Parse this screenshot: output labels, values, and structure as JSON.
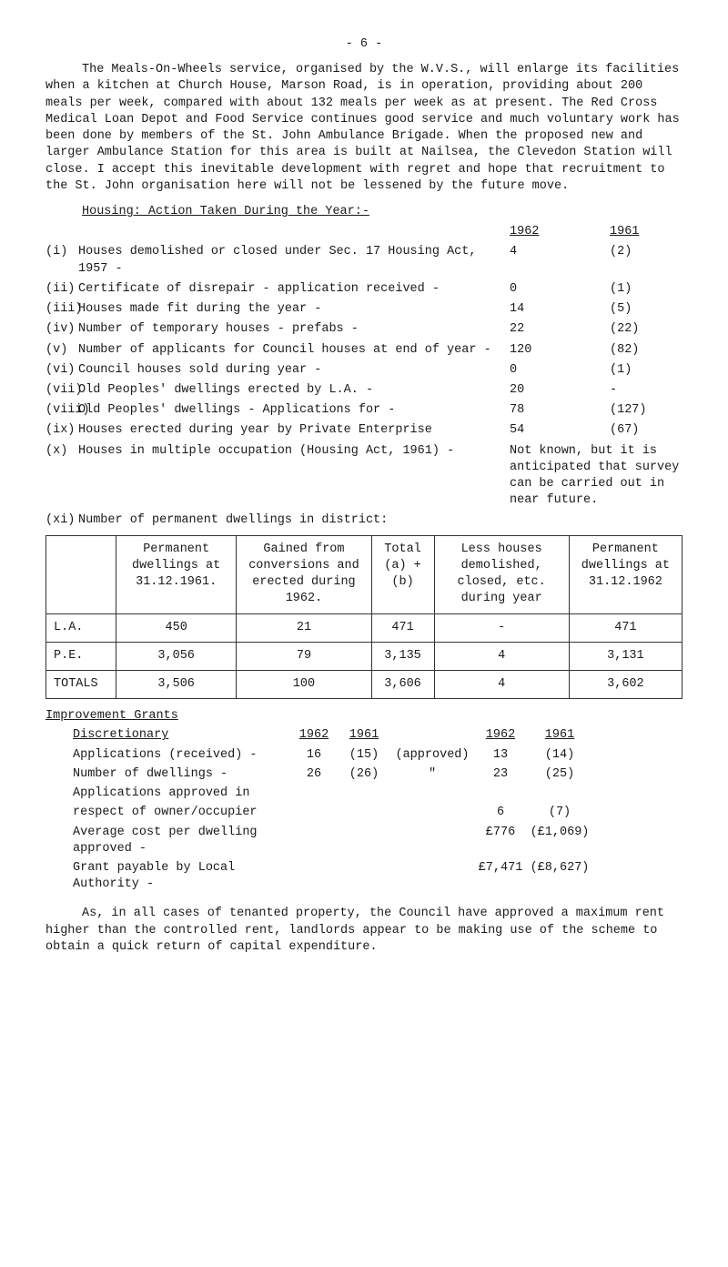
{
  "page_number": "- 6 -",
  "para1": "The Meals-On-Wheels service, organised by the W.V.S., will enlarge its facilities when a kitchen at Church House, Marson Road, is in operation, providing about 200 meals per week, compared with about 132 meals per week as at present.  The Red Cross Medical Loan Depot and Food Service continues good service and much voluntary work has been done by members of the St. John Ambulance Brigade.  When the proposed new and larger Ambulance Station for this area is built at Nailsea, the Clevedon Station will close.  I accept this inevitable development with regret and hope that recruitment to the St. John organisation here will not be lessened by the future move.",
  "housing_heading": "Housing: Action Taken During the Year:-",
  "year_a": "1962",
  "year_b": "1961",
  "housing_rows": [
    {
      "n": "(i)",
      "t": "Houses demolished or closed under Sec. 17 Housing Act, 1957 -",
      "a": "4",
      "b": "(2)"
    },
    {
      "n": "(ii)",
      "t": "Certificate of disrepair - application received -",
      "a": "0",
      "b": "(1)"
    },
    {
      "n": "(iii)",
      "t": "Houses made fit during the year      -",
      "a": "14",
      "b": "(5)"
    },
    {
      "n": "(iv)",
      "t": "Number of temporary houses - prefabs -",
      "a": "22",
      "b": "(22)"
    },
    {
      "n": "(v)",
      "t": "Number of applicants for Council houses at end of year -",
      "a": "120",
      "b": "(82)"
    },
    {
      "n": "(vi)",
      "t": "Council houses sold during year      -",
      "a": "0",
      "b": "(1)"
    },
    {
      "n": "(vii)",
      "t": "Old Peoples' dwellings erected by L.A. -",
      "a": "20",
      "b": "-"
    },
    {
      "n": "(viii)",
      "t": "Old Peoples' dwellings - Applications for -",
      "a": "78",
      "b": "(127)"
    },
    {
      "n": "(ix)",
      "t": "Houses erected during year by Private Enterprise",
      "a": "54",
      "b": "(67)"
    }
  ],
  "housing_x": {
    "n": "(x)",
    "t": "Houses in multiple occupation (Housing Act, 1961)     -",
    "note": "Not known, but it is anticipated that survey can be carried out in near future."
  },
  "housing_xi": {
    "n": "(xi)",
    "t": "Number of permanent dwellings in district:"
  },
  "table": {
    "headers": [
      "",
      "Permanent dwellings at 31.12.1961.",
      "Gained from conversions and erected during 1962.",
      "Total (a) + (b)",
      "Less houses demolished, closed, etc. during year",
      "Permanent dwellings at 31.12.1962"
    ],
    "rows": [
      [
        "L.A.",
        "450",
        "21",
        "471",
        "-",
        "471"
      ],
      [
        "P.E.",
        "3,056",
        "79",
        "3,135",
        "4",
        "3,131"
      ],
      [
        "TOTALS",
        "3,506",
        "100",
        "3,606",
        "4",
        "3,602"
      ]
    ]
  },
  "grants_heading": "Improvement Grants",
  "disc_heading": "Discretionary",
  "disc_years": {
    "c1": "1962",
    "c2": "1961",
    "c4": "1962",
    "c5": "1961"
  },
  "disc_rows": [
    {
      "l": "Applications (received) -",
      "c1": "16",
      "c2": "(15)",
      "c3": "(approved)",
      "c4": "13",
      "c5": "(14)"
    },
    {
      "l": "Number of dwellings     -",
      "c1": "26",
      "c2": "(26)",
      "c3": "\"",
      "c4": "23",
      "c5": "(25)"
    },
    {
      "l": "Applications approved in",
      "c1": "",
      "c2": "",
      "c3": "",
      "c4": "",
      "c5": ""
    },
    {
      "l": "respect of owner/occupier",
      "c1": "",
      "c2": "",
      "c3": "",
      "c4": "6",
      "c5": "(7)"
    },
    {
      "l": "Average cost per dwelling approved  -",
      "c1": "",
      "c2": "",
      "c3": "",
      "c4": "£776",
      "c5": "(£1,069)"
    },
    {
      "l": "Grant payable by Local Authority    -",
      "c1": "",
      "c2": "",
      "c3": "",
      "c4": "£7,471",
      "c5": "(£8,627)"
    }
  ],
  "para_last": "As, in all cases of tenanted property, the Council have approved a maximum rent higher than the controlled rent, landlords appear to be making use of the scheme to obtain a quick return of capital expenditure."
}
